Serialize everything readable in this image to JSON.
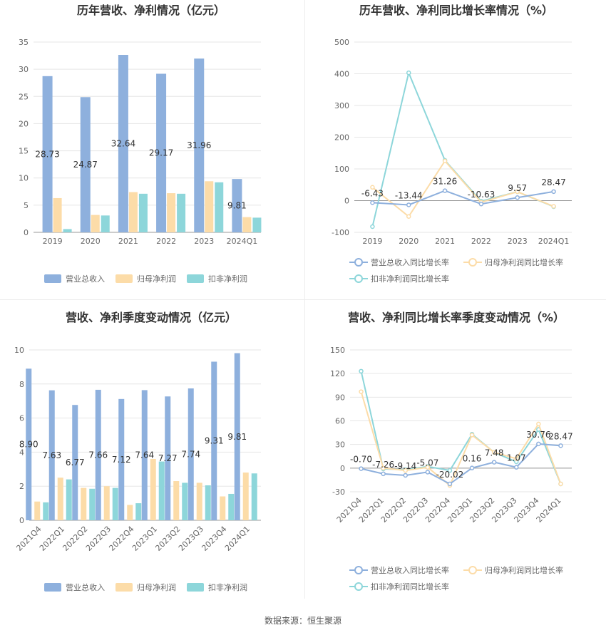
{
  "colors": {
    "revenue": "#8eb0dd",
    "parent_profit": "#fcdca8",
    "deducted_profit": "#8dd6da",
    "grid": "#e6e6e6",
    "axis": "#999999",
    "text": "#666666",
    "title": "#333333"
  },
  "source": "数据来源：恒生聚源",
  "chart_data": [
    {
      "id": "annual_bar",
      "type": "bar",
      "title": "历年营收、净利情况（亿元）",
      "categories": [
        "2019",
        "2020",
        "2021",
        "2022",
        "2023",
        "2024Q1"
      ],
      "ylim": [
        0,
        35
      ],
      "yticks": [
        "0",
        "5",
        "10",
        "15",
        "20",
        "25",
        "30",
        "35"
      ],
      "series": [
        {
          "name": "营业总收入",
          "values": [
            28.73,
            24.87,
            32.64,
            29.17,
            31.96,
            9.81
          ],
          "labels": [
            "28.73",
            "24.87",
            "32.64",
            "29.17",
            "31.96",
            "9.81"
          ]
        },
        {
          "name": "归母净利润",
          "values": [
            6.3,
            3.2,
            7.4,
            7.2,
            9.4,
            2.8
          ]
        },
        {
          "name": "扣非净利润",
          "values": [
            0.6,
            3.1,
            7.1,
            7.1,
            9.2,
            2.7
          ]
        }
      ],
      "legend": "bottom"
    },
    {
      "id": "annual_line",
      "type": "line",
      "title": "历年营收、净利同比增长率情况（%）",
      "categories": [
        "2019",
        "2020",
        "2021",
        "2022",
        "2023",
        "2024Q1"
      ],
      "ylim": [
        -100,
        500
      ],
      "yticks": [
        "-100",
        "0",
        "100",
        "200",
        "300",
        "400",
        "500"
      ],
      "series": [
        {
          "name": "营业总收入同比增长率",
          "values": [
            -6.43,
            -13.44,
            31.26,
            -10.63,
            9.57,
            28.47
          ],
          "labels": [
            "-6.43",
            "-13.44",
            "31.26",
            "-10.63",
            "9.57",
            "28.47"
          ]
        },
        {
          "name": "归母净利润同比增长率",
          "values": [
            42,
            -50,
            125,
            -5,
            28,
            -18
          ]
        },
        {
          "name": "扣非净利润同比增长率",
          "values": [
            -82,
            403,
            127,
            -2,
            28,
            -19
          ]
        }
      ],
      "legend": "bottom"
    },
    {
      "id": "quarter_bar",
      "type": "bar",
      "title": "营收、净利季度变动情况（亿元）",
      "categories": [
        "2021Q4",
        "2022Q1",
        "2022Q2",
        "2022Q3",
        "2022Q4",
        "2023Q1",
        "2023Q2",
        "2023Q3",
        "2023Q4",
        "2024Q1"
      ],
      "ylim": [
        0,
        10
      ],
      "yticks": [
        "0",
        "2",
        "4",
        "6",
        "8",
        "10"
      ],
      "series": [
        {
          "name": "营业总收入",
          "values": [
            8.9,
            7.63,
            6.77,
            7.66,
            7.12,
            7.64,
            7.27,
            7.74,
            9.31,
            9.81
          ],
          "labels": [
            "8.90",
            "7.63",
            "6.77",
            "7.66",
            "7.12",
            "7.64",
            "7.27",
            "7.74",
            "9.31",
            "9.81"
          ]
        },
        {
          "name": "归母净利润",
          "values": [
            1.1,
            2.5,
            1.9,
            2.0,
            0.9,
            3.6,
            2.3,
            2.2,
            1.4,
            2.8
          ]
        },
        {
          "name": "扣非净利润",
          "values": [
            1.05,
            2.4,
            1.85,
            1.9,
            1.0,
            3.45,
            2.2,
            2.05,
            1.55,
            2.75
          ]
        }
      ],
      "legend": "bottom"
    },
    {
      "id": "quarter_line",
      "type": "line",
      "title": "营收、净利同比增长率季度变动情况（%）",
      "categories": [
        "2021Q4",
        "2022Q1",
        "2022Q2",
        "2022Q3",
        "2022Q4",
        "2023Q1",
        "2023Q2",
        "2023Q3",
        "2023Q4",
        "2024Q1"
      ],
      "ylim": [
        -30,
        150
      ],
      "yticks": [
        "-30",
        "0",
        "30",
        "60",
        "90",
        "120",
        "150"
      ],
      "series": [
        {
          "name": "营业总收入同比增长率",
          "values": [
            -0.7,
            -7.26,
            -9.14,
            -5.07,
            -20.02,
            0.16,
            7.48,
            1.07,
            30.76,
            28.47
          ],
          "labels": [
            "-0.70",
            "-7.26",
            "-9.14",
            "-5.07",
            "-20.02",
            "0.16",
            "7.48",
            "1.07",
            "30.76",
            "28.47"
          ]
        },
        {
          "name": "归母净利润同比增长率",
          "values": [
            97,
            0,
            -3,
            1,
            -22,
            42,
            20,
            12,
            56,
            -20
          ]
        },
        {
          "name": "扣非净利润同比增长率",
          "values": [
            123,
            -1,
            -2,
            2,
            -3,
            43,
            20,
            8,
            49,
            -20
          ]
        }
      ],
      "legend": "bottom"
    }
  ]
}
